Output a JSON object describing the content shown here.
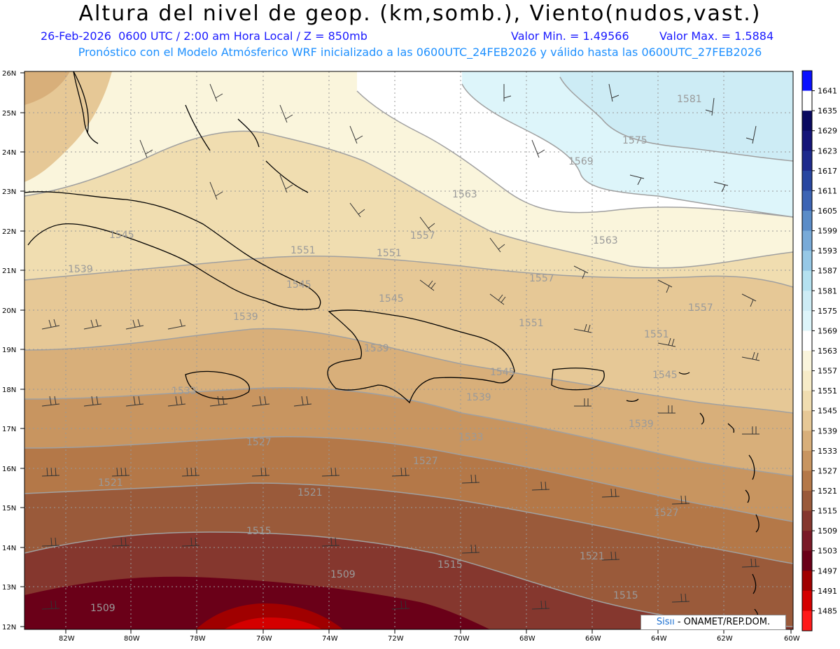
{
  "header": {
    "title": "Altura del nivel de geop. (km,somb.), Viento(nudos,vast.)",
    "date_time": "26-Feb-2026  0600 UTC / 2:00 am Hora Local / Z = 850mb",
    "valor_min": "Valor Min. = 1.49566",
    "valor_max": "Valor Max. = 1.5884",
    "forecast_info": "Pronóstico con el Modelo Atmósferico WRF inicializado a las 0600UTC_24FEB2026 y válido hasta las  0600UTC_27FEB2026"
  },
  "map": {
    "lat_ticks": [
      "12N",
      "13N",
      "14N",
      "15N",
      "16N",
      "17N",
      "18N",
      "19N",
      "20N",
      "21N",
      "22N",
      "23N",
      "24N",
      "25N",
      "26N"
    ],
    "lon_ticks": [
      "82W",
      "80W",
      "78W",
      "76W",
      "74W",
      "72W",
      "70W",
      "68W",
      "66W",
      "64W",
      "62W",
      "60W"
    ],
    "contour_labels": [
      {
        "text": "1581"
      },
      {
        "text": "1575"
      },
      {
        "text": "1569"
      },
      {
        "text": "1563"
      },
      {
        "text": "1563"
      },
      {
        "text": "1557"
      },
      {
        "text": "1557"
      },
      {
        "text": "1557"
      },
      {
        "text": "1551"
      },
      {
        "text": "1551"
      },
      {
        "text": "1551"
      },
      {
        "text": "1551"
      },
      {
        "text": "1545"
      },
      {
        "text": "1545"
      },
      {
        "text": "1545"
      },
      {
        "text": "1545"
      },
      {
        "text": "1545"
      },
      {
        "text": "1539"
      },
      {
        "text": "1539"
      },
      {
        "text": "1539"
      },
      {
        "text": "1539"
      },
      {
        "text": "1539"
      },
      {
        "text": "1533"
      },
      {
        "text": "1533"
      },
      {
        "text": "1527"
      },
      {
        "text": "1527"
      },
      {
        "text": "1527"
      },
      {
        "text": "1521"
      },
      {
        "text": "1521"
      },
      {
        "text": "1521"
      },
      {
        "text": "1515"
      },
      {
        "text": "1515"
      },
      {
        "text": "1515"
      },
      {
        "text": "1509"
      },
      {
        "text": "1509"
      }
    ]
  },
  "colorbar": {
    "levels": [
      "1641",
      "1635",
      "1629",
      "1623",
      "1617",
      "1611",
      "1605",
      "1599",
      "1593",
      "1587",
      "1581",
      "1575",
      "1569",
      "1563",
      "1557",
      "1551",
      "1545",
      "1539",
      "1533",
      "1527",
      "1521",
      "1515",
      "1509",
      "1503",
      "1497",
      "1491",
      "1485"
    ],
    "colors": [
      "#0a10ff",
      "#ffffff",
      "#0a0a60",
      "#141478",
      "#1e2a8c",
      "#2846a0",
      "#3c64b4",
      "#5a8cc8",
      "#78aad8",
      "#96c8e6",
      "#b4e1f0",
      "#cdecf5",
      "#ddf5fa",
      "#ffffff",
      "#faf5dc",
      "#f7ecc8",
      "#f0ddb0",
      "#e6c896",
      "#d8af7a",
      "#c89560",
      "#b47848",
      "#9a5a3a",
      "#85372e",
      "#7a1a28",
      "#6a0018",
      "#a00000",
      "#d40000",
      "#ff1a1a"
    ]
  },
  "credit": {
    "brand": "Sis",
    "brand2": "ıı",
    "text": " - ONAMET/REP.DOM."
  }
}
